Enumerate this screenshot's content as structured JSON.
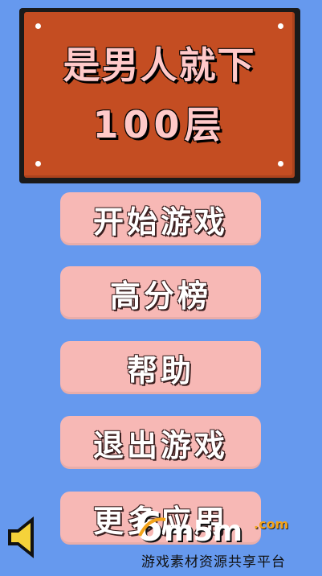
{
  "title": {
    "line1": "是男人就下",
    "line2": "100层"
  },
  "menu": {
    "start": "开始游戏",
    "high_scores": "高分榜",
    "help": "帮助",
    "exit": "退出游戏",
    "more_apps": "更多应用"
  },
  "sound": {
    "icon": "speaker-icon"
  },
  "watermark": {
    "six": "6",
    "m5m": "m5m",
    "com": ".com",
    "tagline": "游戏素材资源共享平台"
  },
  "colors": {
    "background": "#6699ee",
    "board": "#c44d22",
    "button": "#f7b8b5",
    "speaker": "#f5d23a",
    "com_accent": "#f2a31b"
  }
}
